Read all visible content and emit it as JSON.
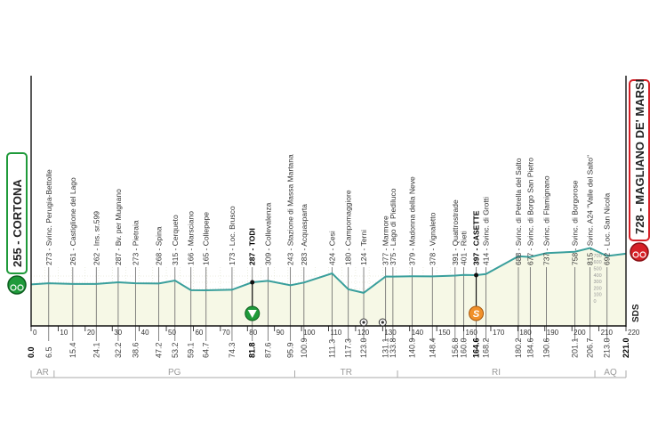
{
  "chart_data": {
    "type": "area",
    "xlabel": "",
    "ylabel": "",
    "xlim": [
      0,
      220
    ],
    "x_ticks": [
      0,
      10,
      20,
      30,
      40,
      50,
      60,
      70,
      80,
      90,
      100,
      110,
      120,
      130,
      140,
      150,
      160,
      170,
      180,
      190,
      200,
      210,
      220
    ],
    "altitude_scale_ticks": [
      700,
      600,
      500,
      400,
      300,
      200,
      100,
      0
    ],
    "grid": true,
    "profile_color": "#3a9f9c",
    "fill_color": "#f6f8e6",
    "start": {
      "label": "255 - CORTONA",
      "km": "0.0",
      "altitude": 255,
      "color": "#1f9a3a"
    },
    "finish": {
      "label": "728 - MAGLIANO DE' MARSI",
      "km": "221.0",
      "altitude": 728,
      "color": "#d62027"
    },
    "waypoints": [
      {
        "km": 6.5,
        "km_label": "6.5",
        "label": "273 - Svinc. Perugia-Bettolle",
        "alt": 273
      },
      {
        "km": 15.4,
        "km_label": "15.4",
        "label": "261 - Castiglione del Lago",
        "alt": 261
      },
      {
        "km": 24.1,
        "km_label": "24.1",
        "label": "262 - Ins. sr.599",
        "alt": 262
      },
      {
        "km": 32.2,
        "km_label": "32.2",
        "label": "287 - Bv. per Mugnano",
        "alt": 287
      },
      {
        "km": 38.6,
        "km_label": "38.6",
        "label": "273 - Pietraia",
        "alt": 273
      },
      {
        "km": 47.2,
        "km_label": "47.2",
        "label": "268 - Spina",
        "alt": 268
      },
      {
        "km": 53.2,
        "km_label": "53.2",
        "label": "315 - Cerqueto",
        "alt": 315
      },
      {
        "km": 59.1,
        "km_label": "59.1",
        "label": "166 - Marsciano",
        "alt": 166
      },
      {
        "km": 64.7,
        "km_label": "64.7",
        "label": "165 - Collepepe",
        "alt": 165
      },
      {
        "km": 74.3,
        "km_label": "74.3",
        "label": "173 - Loc. Brusco",
        "alt": 173
      },
      {
        "km": 81.8,
        "km_label": "81.8",
        "label": "287 - TODI",
        "alt": 287,
        "bold": true,
        "icon": "intermediate-sprint"
      },
      {
        "km": 87.6,
        "km_label": "87.6",
        "label": "309 - Collevalenza",
        "alt": 309
      },
      {
        "km": 95.9,
        "km_label": "95.9",
        "label": "243 - Stazione di Massa Martana",
        "alt": 243
      },
      {
        "km": 100.9,
        "km_label": "100.9",
        "label": "283 - Acquasparta",
        "alt": 283
      },
      {
        "km": 111.3,
        "km_label": "111.3",
        "label": "424 - Cesi",
        "alt": 424
      },
      {
        "km": 117.3,
        "km_label": "117.3",
        "label": "180 - Campomaggiore",
        "alt": 180
      },
      {
        "km": 123.0,
        "km_label": "123.0",
        "label": "124 - Terni",
        "alt": 124
      },
      {
        "km": 131.1,
        "km_label": "131.1",
        "label": "377 - Marmore",
        "alt": 377
      },
      {
        "km": 133.8,
        "km_label": "133.8",
        "label": "375 - Lago di Piediluco",
        "alt": 375
      },
      {
        "km": 140.9,
        "km_label": "140.9",
        "label": "379 - Madonna della Neve",
        "alt": 379
      },
      {
        "km": 148.4,
        "km_label": "148.4",
        "label": "378 - Vignaletto",
        "alt": 378
      },
      {
        "km": 156.8,
        "km_label": "156.8",
        "label": "391 - Quattrostrade",
        "alt": 391
      },
      {
        "km": 160.0,
        "km_label": "160.0",
        "label": "401 - Rieti",
        "alt": 401
      },
      {
        "km": 164.6,
        "km_label": "164.6",
        "label": "397 - CASETTE",
        "alt": 397,
        "bold": true,
        "icon": "sprint"
      },
      {
        "km": 168.2,
        "km_label": "168.2",
        "label": "414 - Svinc. di Grotti",
        "alt": 414
      },
      {
        "km": 180.2,
        "km_label": "180.2",
        "label": "688 - Svinc. di Petrella del Salto",
        "alt": 688
      },
      {
        "km": 184.6,
        "km_label": "184.6",
        "label": "677 - Svinc. di Borgo San Pietro",
        "alt": 677
      },
      {
        "km": 190.6,
        "km_label": "190.6",
        "label": "737 - Svinc. di Flamignano",
        "alt": 737
      },
      {
        "km": 201.1,
        "km_label": "201.1",
        "label": "758 - Svinc. di Borgorose",
        "alt": 758
      },
      {
        "km": 206.7,
        "km_label": "206.7",
        "label": "815 - Svinc. A24 \"Valle del Salto\"",
        "alt": 815
      },
      {
        "km": 213.0,
        "km_label": "213.0",
        "label": "692 - Loc. San Nicola",
        "alt": 692
      }
    ],
    "markers": [
      {
        "km": 123.0,
        "icon": "feed-zone"
      },
      {
        "km": 130.0,
        "icon": "technical-assistance"
      }
    ],
    "regions": [
      {
        "code": "AR",
        "from": 0,
        "to": 8.5
      },
      {
        "code": "PG",
        "from": 8.5,
        "to": 97.5
      },
      {
        "code": "TR",
        "from": 97.5,
        "to": 135.5
      },
      {
        "code": "RI",
        "from": 135.5,
        "to": 208.5
      },
      {
        "code": "AQ",
        "from": 208.5,
        "to": 220
      }
    ],
    "credit": "SDS"
  }
}
